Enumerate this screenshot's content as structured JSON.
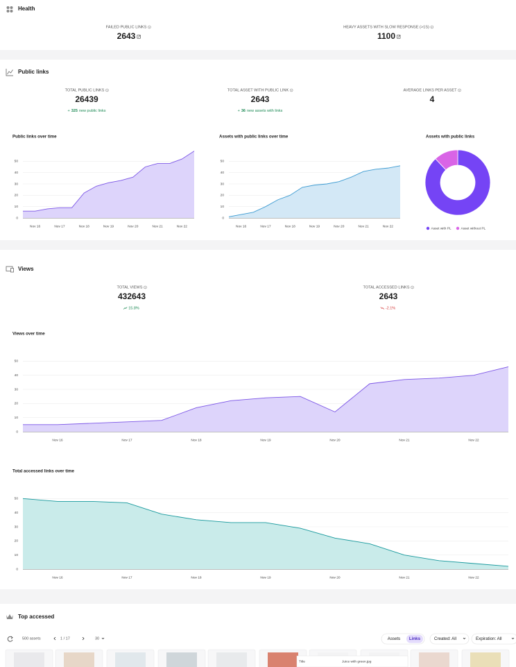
{
  "health": {
    "title": "Health",
    "stats": [
      {
        "label": "FAILED PUBLIC LINKS",
        "value": 2643
      },
      {
        "label": "HEAVY ASSETS WITH SLOW RESPONSE (>1S)",
        "value": 1100
      }
    ]
  },
  "public_links": {
    "title": "Public links",
    "stats": [
      {
        "label": "TOTAL PUBLIC LINKS",
        "value": 26439,
        "delta_prefix": "+",
        "delta": 325,
        "delta_text": "new public links"
      },
      {
        "label": "TOTAL ASSET WITH PUBLIC LINK",
        "value": 2643,
        "delta_prefix": "+",
        "delta": 36,
        "delta_text": "new assets with links"
      },
      {
        "label": "AVERAGE LINKS PER ASSET",
        "value": 4
      }
    ]
  },
  "views": {
    "title": "Views",
    "stats": [
      {
        "label": "TOTAL VIEWS",
        "value": 432643,
        "delta": "15.8%",
        "trend": "up"
      },
      {
        "label": "TOTAL ACCESSED LINKS",
        "value": 2643,
        "delta": "-2.1%",
        "trend": "down"
      }
    ]
  },
  "chart_data": [
    {
      "type": "area",
      "title": "Public links over time",
      "categories": [
        null,
        "Nov 16",
        null,
        "Nov 17",
        null,
        "Nov 18",
        null,
        "Nov 19",
        null,
        "Nov 20",
        null,
        "Nov 21",
        null,
        "Nov 22",
        null
      ],
      "series": [
        {
          "color": "#7b55e6",
          "fill": "#ddd4fb",
          "values": [
            6,
            6,
            8,
            9,
            9,
            22,
            28,
            31,
            33,
            36,
            45,
            48,
            48,
            52,
            59
          ]
        }
      ],
      "ylim": [
        0,
        60
      ],
      "yticks": [
        0,
        10,
        20,
        30,
        40,
        50
      ],
      "grid": true
    },
    {
      "type": "area",
      "title": "Assets with public links over time",
      "categories": [
        null,
        "Nov 16",
        null,
        "Nov 17",
        null,
        "Nov 18",
        null,
        "Nov 19",
        null,
        "Nov 20",
        null,
        "Nov 21",
        null,
        "Nov 22",
        null
      ],
      "series": [
        {
          "color": "#3b9ad1",
          "fill": "#d3e8f6",
          "values": [
            1,
            3,
            5,
            10,
            16,
            20,
            27,
            29,
            30,
            32,
            36,
            41,
            43,
            44,
            46
          ]
        }
      ],
      "ylim": [
        0,
        60
      ],
      "yticks": [
        0,
        10,
        20,
        30,
        40,
        50
      ],
      "grid": true
    },
    {
      "type": "pie",
      "title": "Assets with public links",
      "categories": [
        "Asset with PL",
        "Asset without PL"
      ],
      "values": [
        88,
        12
      ],
      "colors": [
        "#7544f5",
        "#d964e6"
      ],
      "donut": true,
      "legend": "bottom"
    },
    {
      "type": "area",
      "title": "Views over time",
      "categories": [
        null,
        "Nov 16",
        null,
        "Nov 17",
        null,
        "Nov 18",
        null,
        "Nov 19",
        null,
        "Nov 20",
        null,
        "Nov 21",
        null,
        "Nov 22",
        null
      ],
      "series": [
        {
          "color": "#7b55e6",
          "fill": "#ddd4fb",
          "values": [
            5,
            5,
            6,
            7,
            8,
            17,
            22,
            24,
            25,
            14,
            34,
            37,
            38,
            40,
            46
          ]
        }
      ],
      "ylim": [
        0,
        60
      ],
      "yticks": [
        0,
        10,
        20,
        30,
        40,
        50
      ],
      "grid": true
    },
    {
      "type": "area",
      "title": "Total accessed links over time",
      "categories": [
        null,
        "Nov 16",
        null,
        "Nov 17",
        null,
        "Nov 18",
        null,
        "Nov 19",
        null,
        "Nov 20",
        null,
        "Nov 21",
        null,
        "Nov 22",
        null
      ],
      "series": [
        {
          "color": "#16989c",
          "fill": "#c9ebea",
          "values": [
            50,
            48,
            48,
            47,
            39,
            35,
            33,
            33,
            29,
            22,
            18,
            10,
            6,
            4,
            2
          ]
        }
      ],
      "ylim": [
        0,
        60
      ],
      "yticks": [
        0,
        10,
        20,
        30,
        40,
        50
      ],
      "grid": true
    }
  ],
  "top_accessed": {
    "title": "Top accessed",
    "count": "500 assets",
    "page": "1 / 17",
    "per_page": "30",
    "tabs": [
      "Assets",
      "Links"
    ],
    "active_tab": 1,
    "filters": [
      "Created: All",
      "Expiration: All"
    ],
    "overlay": {
      "label": "Title",
      "value": "Juice with green.jpg"
    }
  }
}
